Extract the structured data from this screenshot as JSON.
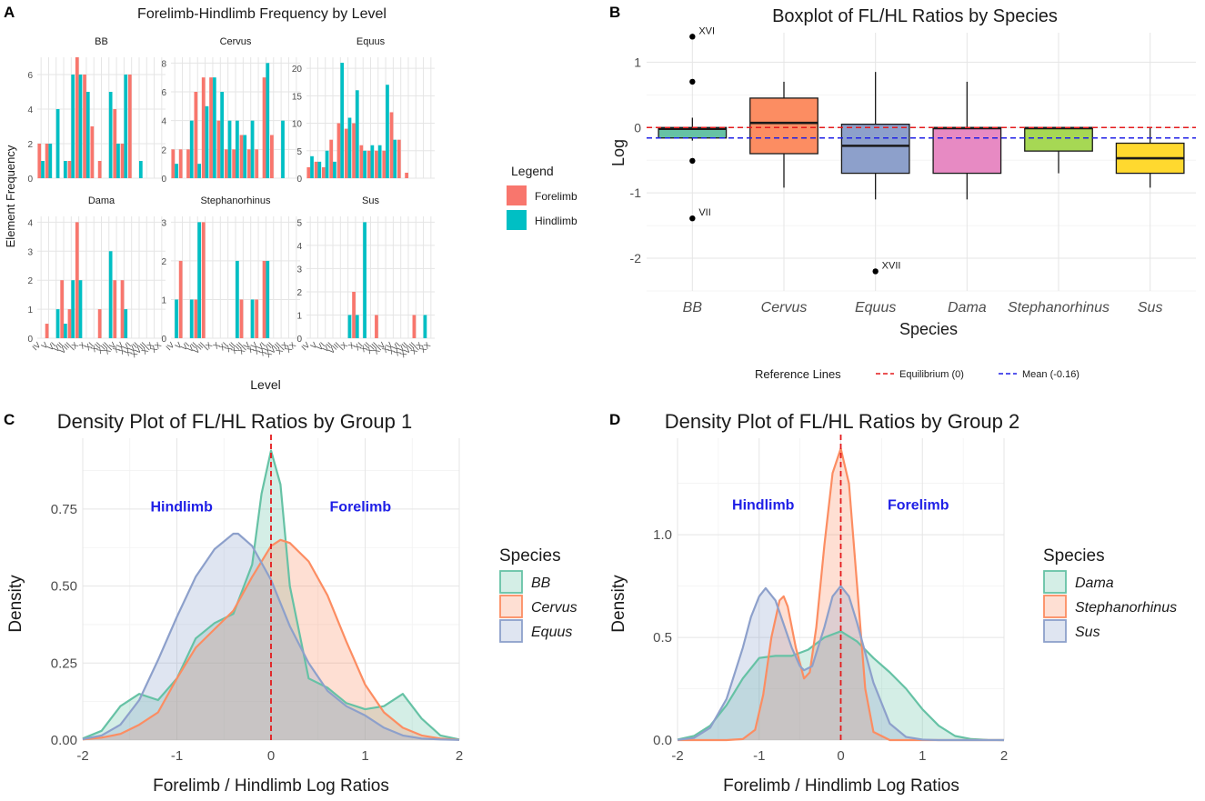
{
  "panel_letters": [
    "A",
    "B",
    "C",
    "D"
  ],
  "chart_data": [
    {
      "id": "A",
      "type": "bar",
      "title": "Forelimb-Hindlimb Frequency by Level",
      "xlabel": "Level",
      "ylabel": "Element Frequency",
      "legend": {
        "title": "Legend",
        "placement": "right",
        "items": [
          {
            "name": "Forelimb",
            "color": "#F8766D"
          },
          {
            "name": "Hindlimb",
            "color": "#00BFC4"
          }
        ]
      },
      "categories": [
        "IV",
        "V",
        "VI",
        "VII",
        "VIII",
        "IX",
        "X",
        "XI",
        "XII",
        "XIII",
        "XIV",
        "XV",
        "XVI",
        "XVII",
        "XVIII",
        "XIX",
        "XX"
      ],
      "facets": [
        {
          "name": "BB",
          "ylim": [
            0,
            7
          ],
          "yticks": [
            0,
            2,
            4,
            6
          ],
          "forelimb": [
            2,
            2,
            0,
            0,
            1,
            7,
            6,
            3,
            1,
            0,
            4,
            2,
            6,
            0,
            0,
            0,
            0
          ],
          "hindlimb": [
            1,
            2,
            4,
            1,
            6,
            6,
            5,
            0,
            0,
            5,
            2,
            6,
            0,
            1,
            0,
            0,
            0
          ]
        },
        {
          "name": "Cervus",
          "ylim": [
            0,
            8.4
          ],
          "yticks": [
            0,
            2,
            4,
            6,
            8
          ],
          "forelimb": [
            2,
            2,
            2,
            6,
            7,
            7,
            4,
            2,
            2,
            3,
            2,
            2,
            7,
            3,
            0,
            0,
            0
          ],
          "hindlimb": [
            1,
            0,
            4,
            1,
            5,
            7,
            6,
            4,
            4,
            3,
            4,
            0,
            8,
            0,
            4,
            0,
            0
          ],
          "tick_labels": [
            "0",
            "2",
            "4",
            "6",
            "8"
          ]
        },
        {
          "name": "Equus",
          "ylim": [
            0,
            22
          ],
          "yticks": [
            0,
            5,
            10,
            15,
            20
          ],
          "forelimb": [
            2,
            3,
            2,
            7,
            10,
            9,
            10,
            6,
            5,
            5,
            5,
            12,
            7,
            1,
            0,
            0,
            0
          ],
          "hindlimb": [
            4,
            3,
            5,
            3,
            21,
            11,
            16,
            5,
            6,
            6,
            17,
            7,
            0,
            0,
            0,
            0,
            0
          ]
        },
        {
          "name": "Dama",
          "ylim": [
            0,
            4.2
          ],
          "yticks": [
            0,
            1,
            2,
            3,
            4
          ],
          "forelimb": [
            0,
            0.5,
            0,
            2,
            1,
            4,
            0,
            0,
            1,
            0,
            2,
            2,
            0,
            0,
            0,
            0,
            0
          ],
          "hindlimb": [
            0,
            0,
            1,
            0.5,
            2,
            2,
            0,
            0,
            0,
            3,
            0,
            1,
            0,
            0,
            0,
            0,
            0
          ]
        },
        {
          "name": "Stephanorhinus",
          "ylim": [
            0,
            3.15
          ],
          "yticks": [
            0,
            1,
            2,
            3
          ],
          "forelimb": [
            0,
            2,
            0,
            1,
            3,
            0,
            0,
            0,
            0,
            1,
            0,
            1,
            2,
            0,
            0,
            0,
            0
          ],
          "hindlimb": [
            1,
            0,
            1,
            3,
            0,
            0,
            0,
            0,
            2,
            0,
            1,
            0,
            2,
            0,
            0,
            0,
            0
          ]
        },
        {
          "name": "Sus",
          "ylim": [
            0,
            5.25
          ],
          "yticks": [
            0,
            1,
            2,
            3,
            4,
            5
          ],
          "forelimb": [
            0,
            0,
            0,
            0,
            0,
            0,
            2,
            0,
            0,
            1,
            0,
            0,
            0,
            0,
            1,
            0,
            0
          ],
          "hindlimb": [
            0,
            0,
            0,
            0,
            0,
            1,
            1,
            5,
            0,
            0,
            0,
            0,
            0,
            0,
            0,
            1,
            0
          ],
          "tick_labels": [
            "0",
            "1",
            "2",
            "3",
            "4",
            "5"
          ]
        }
      ]
    },
    {
      "id": "B",
      "type": "boxplot",
      "title": "Boxplot of FL/HL Ratios by Species",
      "xlabel": "Species",
      "ylabel": "Log",
      "ylim": [
        -2.5,
        1.45
      ],
      "yticks": [
        -2,
        -1,
        0,
        1
      ],
      "categories": [
        "BB",
        "Cervus",
        "Equus",
        "Dama",
        "Stephanorhinus",
        "Sus"
      ],
      "boxes": [
        {
          "name": "BB",
          "q1": -0.16,
          "median": -0.02,
          "q3": 0,
          "wlo": -0.2,
          "whi": 0.15,
          "color": "#66C2A5",
          "outliers": [
            {
              "y": 1.39,
              "label": "XVI"
            },
            {
              "y": 0.7,
              "label": ""
            },
            {
              "y": -0.51,
              "label": ""
            },
            {
              "y": -1.39,
              "label": "VII"
            }
          ]
        },
        {
          "name": "Cervus",
          "q1": -0.4,
          "median": 0.07,
          "q3": 0.45,
          "wlo": -0.92,
          "whi": 0.7,
          "color": "#FC8D62",
          "outliers": []
        },
        {
          "name": "Equus",
          "q1": -0.7,
          "median": -0.28,
          "q3": 0.05,
          "wlo": -1.1,
          "whi": 0.85,
          "color": "#8DA0CB",
          "outliers": [
            {
              "y": -2.2,
              "label": "XVII"
            }
          ]
        },
        {
          "name": "Dama",
          "q1": -0.7,
          "median": -0.01,
          "q3": 0,
          "wlo": -1.1,
          "whi": 0.7,
          "color": "#E78AC3",
          "outliers": []
        },
        {
          "name": "Stephanorhinus",
          "q1": -0.36,
          "median": -0.01,
          "q3": 0,
          "wlo": -0.7,
          "whi": 0,
          "color": "#A6D854",
          "outliers": []
        },
        {
          "name": "Sus",
          "q1": -0.7,
          "median": -0.47,
          "q3": -0.24,
          "wlo": -0.92,
          "whi": 0,
          "color": "#FFD92F",
          "outliers": []
        }
      ],
      "reference_lines": {
        "title": "Reference Lines",
        "placement": "bottom",
        "lines": [
          {
            "name": "Equilibrium (0)",
            "y": 0,
            "color": "#E41A1C"
          },
          {
            "name": "Mean (-0.16)",
            "y": -0.16,
            "color": "#1F1FE6"
          }
        ]
      }
    },
    {
      "id": "C",
      "type": "density",
      "title": "Density Plot of FL/HL Ratios by Group 1",
      "xlabel": "Forelimb / Hindlimb Log Ratios",
      "ylabel": "Density",
      "xlim": [
        -2,
        2
      ],
      "ylim": [
        0,
        0.98
      ],
      "xticks": [
        -2,
        -1,
        0,
        1,
        2
      ],
      "yticks": [
        0,
        0.25,
        0.5,
        0.75
      ],
      "tick_labels_y": [
        "0.00",
        "0.25",
        "0.50",
        "0.75"
      ],
      "annotations": [
        {
          "text": "Hindlimb",
          "x": -0.95,
          "y": 0.76
        },
        {
          "text": "Forelimb",
          "x": 0.95,
          "y": 0.76
        }
      ],
      "vline": 0,
      "legend": {
        "title": "Species",
        "placement": "right"
      },
      "series": [
        {
          "name": "BB",
          "color": "#66C2A5",
          "x": [
            -2,
            -1.8,
            -1.6,
            -1.4,
            -1.2,
            -1,
            -0.8,
            -0.6,
            -0.4,
            -0.2,
            -0.1,
            0,
            0.1,
            0.2,
            0.4,
            0.6,
            0.8,
            1,
            1.2,
            1.4,
            1.6,
            1.8,
            2
          ],
          "y": [
            0.005,
            0.03,
            0.11,
            0.15,
            0.13,
            0.2,
            0.33,
            0.38,
            0.41,
            0.57,
            0.8,
            0.94,
            0.83,
            0.5,
            0.2,
            0.17,
            0.12,
            0.1,
            0.11,
            0.15,
            0.07,
            0.015,
            0.002
          ]
        },
        {
          "name": "Cervus",
          "color": "#FC8D62",
          "x": [
            -2,
            -1.8,
            -1.6,
            -1.4,
            -1.2,
            -1,
            -0.8,
            -0.6,
            -0.4,
            -0.2,
            0,
            0.1,
            0.2,
            0.4,
            0.6,
            0.8,
            1,
            1.2,
            1.4,
            1.6,
            1.8,
            2
          ],
          "y": [
            0.002,
            0.008,
            0.02,
            0.05,
            0.09,
            0.2,
            0.3,
            0.36,
            0.42,
            0.53,
            0.63,
            0.65,
            0.64,
            0.58,
            0.47,
            0.32,
            0.18,
            0.09,
            0.04,
            0.015,
            0.005,
            0.001
          ]
        },
        {
          "name": "Equus",
          "color": "#8DA0CB",
          "x": [
            -2,
            -1.8,
            -1.6,
            -1.4,
            -1.2,
            -1,
            -0.8,
            -0.6,
            -0.4,
            -0.35,
            -0.2,
            0,
            0.2,
            0.4,
            0.6,
            0.8,
            1,
            1.2,
            1.4,
            1.6,
            1.8,
            2
          ],
          "y": [
            0.003,
            0.015,
            0.05,
            0.13,
            0.26,
            0.4,
            0.53,
            0.62,
            0.67,
            0.67,
            0.63,
            0.52,
            0.37,
            0.25,
            0.16,
            0.11,
            0.08,
            0.04,
            0.015,
            0.005,
            0.002,
            0.0005
          ]
        }
      ]
    },
    {
      "id": "D",
      "type": "density",
      "title": "Density Plot of FL/HL Ratios by Group 2",
      "xlabel": "Forelimb / Hindlimb Log Ratios",
      "ylabel": "Density",
      "xlim": [
        -2,
        2
      ],
      "ylim": [
        0,
        1.47
      ],
      "xticks": [
        -2,
        -1,
        0,
        1,
        2
      ],
      "yticks": [
        0,
        0.5,
        1
      ],
      "tick_labels_y": [
        "0.0",
        "0.5",
        "1.0"
      ],
      "annotations": [
        {
          "text": "Hindlimb",
          "x": -0.95,
          "y": 1.15
        },
        {
          "text": "Forelimb",
          "x": 0.95,
          "y": 1.15
        }
      ],
      "vline": 0,
      "legend": {
        "title": "Species",
        "placement": "right"
      },
      "series": [
        {
          "name": "Dama",
          "color": "#66C2A5",
          "x": [
            -2,
            -1.8,
            -1.6,
            -1.4,
            -1.2,
            -1,
            -0.8,
            -0.6,
            -0.4,
            -0.2,
            0,
            0.2,
            0.4,
            0.6,
            0.8,
            1,
            1.2,
            1.4,
            1.6,
            1.8,
            2
          ],
          "y": [
            0.002,
            0.02,
            0.07,
            0.17,
            0.3,
            0.4,
            0.41,
            0.41,
            0.44,
            0.5,
            0.53,
            0.48,
            0.4,
            0.33,
            0.25,
            0.15,
            0.07,
            0.02,
            0.005,
            0.001,
            0.0002
          ]
        },
        {
          "name": "Stephanorhinus",
          "color": "#FC8D62",
          "x": [
            -2,
            -1.4,
            -1.2,
            -1.05,
            -0.95,
            -0.85,
            -0.75,
            -0.7,
            -0.65,
            -0.55,
            -0.45,
            -0.38,
            -0.3,
            -0.2,
            -0.1,
            0,
            0.1,
            0.2,
            0.3,
            0.4,
            0.6,
            2
          ],
          "y": [
            0,
            0,
            0.005,
            0.05,
            0.22,
            0.5,
            0.68,
            0.7,
            0.65,
            0.45,
            0.3,
            0.33,
            0.55,
            0.95,
            1.3,
            1.42,
            1.25,
            0.75,
            0.25,
            0.04,
            0,
            0
          ]
        },
        {
          "name": "Sus",
          "color": "#8DA0CB",
          "x": [
            -2,
            -1.8,
            -1.6,
            -1.4,
            -1.2,
            -1.1,
            -1,
            -0.92,
            -0.8,
            -0.6,
            -0.5,
            -0.45,
            -0.35,
            -0.2,
            -0.1,
            0,
            0.1,
            0.2,
            0.4,
            0.6,
            0.8,
            1,
            1.2,
            2
          ],
          "y": [
            0.001,
            0.01,
            0.06,
            0.2,
            0.45,
            0.6,
            0.7,
            0.74,
            0.68,
            0.45,
            0.36,
            0.34,
            0.36,
            0.55,
            0.7,
            0.75,
            0.7,
            0.57,
            0.28,
            0.08,
            0.015,
            0.002,
            0,
            0
          ]
        }
      ]
    }
  ]
}
